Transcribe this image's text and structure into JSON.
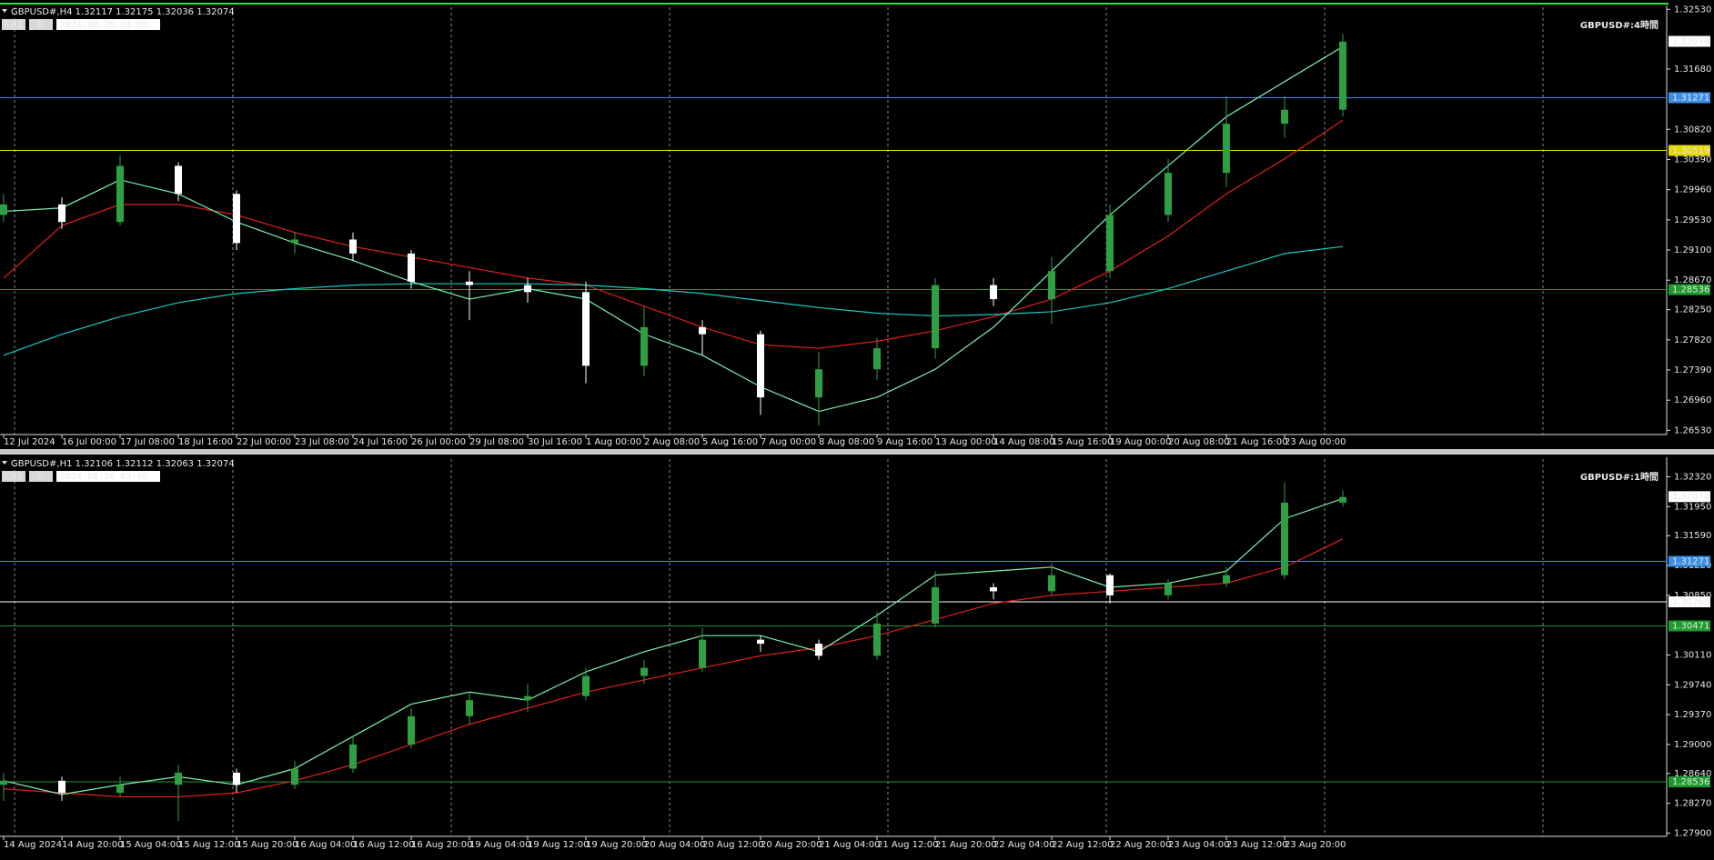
{
  "chart_data": [
    {
      "type": "candlestick",
      "header": "GBPUSD#,H4  1.32117 1.32175 1.32036 1.32074",
      "buttons": [
        "CR1",
        "R"
      ],
      "date": "2024.08.26 04:00",
      "title": "GBPUSD#:4時間",
      "categories": [
        "12 Jul 2024",
        "16 Jul 00:00",
        "17 Jul 08:00",
        "18 Jul 16:00",
        "22 Jul 00:00",
        "23 Jul 08:00",
        "24 Jul 16:00",
        "26 Jul 00:00",
        "29 Jul 08:00",
        "30 Jul 16:00",
        "1 Aug 00:00",
        "2 Aug 08:00",
        "5 Aug 16:00",
        "7 Aug 00:00",
        "8 Aug 08:00",
        "9 Aug 16:00",
        "13 Aug 00:00",
        "14 Aug 08:00",
        "15 Aug 16:00",
        "19 Aug 00:00",
        "20 Aug 08:00",
        "21 Aug 16:00",
        "23 Aug 00:00",
        null
      ],
      "open": [
        1.296,
        1.2975,
        1.295,
        1.303,
        1.299,
        1.292,
        1.2925,
        1.2905,
        1.2865,
        1.286,
        1.285,
        1.2745,
        1.28,
        1.279,
        1.27,
        1.274,
        1.277,
        1.286,
        1.284,
        1.288,
        1.296,
        1.302,
        1.309,
        1.311
      ],
      "high": [
        1.299,
        1.2985,
        1.3045,
        1.3035,
        1.2995,
        1.2935,
        1.2935,
        1.291,
        1.288,
        1.287,
        1.2865,
        1.283,
        1.281,
        1.2795,
        1.2765,
        1.2785,
        1.287,
        1.287,
        1.29,
        1.2975,
        1.304,
        1.313,
        1.313,
        1.3218
      ],
      "low": [
        1.295,
        1.294,
        1.2945,
        1.298,
        1.291,
        1.2905,
        1.2895,
        1.2855,
        1.281,
        1.2835,
        1.272,
        1.273,
        1.276,
        1.2675,
        1.266,
        1.2725,
        1.2755,
        1.283,
        1.2805,
        1.287,
        1.295,
        1.3,
        1.307,
        1.31
      ],
      "close": [
        1.2975,
        1.295,
        1.303,
        1.299,
        1.292,
        1.2925,
        1.2905,
        1.2865,
        1.286,
        1.285,
        1.2745,
        1.28,
        1.279,
        1.27,
        1.274,
        1.277,
        1.286,
        1.284,
        1.288,
        1.296,
        1.302,
        1.309,
        1.311,
        1.3207
      ],
      "up_color": "#2ea043",
      "down_color": "#ffffff",
      "series": [
        {
          "color": "#e0201b",
          "values": [
            1.287,
            1.2945,
            1.2975,
            1.2975,
            1.296,
            1.2935,
            1.2915,
            1.29,
            1.2885,
            1.287,
            1.286,
            1.283,
            1.28,
            1.2775,
            1.277,
            1.278,
            1.2795,
            1.2815,
            1.284,
            1.288,
            1.293,
            1.299,
            1.304,
            1.3095
          ]
        },
        {
          "color": "#1fc6c6",
          "values": [
            1.276,
            1.279,
            1.2815,
            1.2835,
            1.2848,
            1.2855,
            1.286,
            1.2862,
            1.2862,
            1.2862,
            1.286,
            1.2855,
            1.2848,
            1.2838,
            1.2828,
            1.282,
            1.2816,
            1.2818,
            1.2822,
            1.2835,
            1.2855,
            1.288,
            1.2905,
            1.2915
          ]
        },
        {
          "color": "#7cf0b0",
          "values": [
            1.2965,
            1.297,
            1.301,
            1.299,
            1.295,
            1.292,
            1.2895,
            1.2865,
            1.284,
            1.2855,
            1.284,
            1.279,
            1.276,
            1.2715,
            1.268,
            1.27,
            1.274,
            1.28,
            1.288,
            1.296,
            1.303,
            1.31,
            1.315,
            1.32
          ]
        }
      ],
      "hlines": [
        {
          "value": 1.31271,
          "label": "1.31271",
          "color": "#3a8ee6"
        },
        {
          "value": 1.30519,
          "label": "1.30519",
          "color": "#e5d800"
        },
        {
          "value": 1.28536,
          "label": "1.28536",
          "color": "#1e9a2e"
        }
      ],
      "last_price": {
        "value": 1.32074,
        "label": "1.32074"
      },
      "ylim": [
        1.2647,
        1.3256
      ],
      "yticks": [
        {
          "value": 1.3253,
          "label": "1.32530"
        },
        {
          "value": 1.3168,
          "label": "1.31680"
        },
        {
          "value": 1.3082,
          "label": "1.30820"
        },
        {
          "value": 1.3039,
          "label": "1.30390"
        },
        {
          "value": 1.2996,
          "label": "1.29960"
        },
        {
          "value": 1.2953,
          "label": "1.29530"
        },
        {
          "value": 1.291,
          "label": "1.29100"
        },
        {
          "value": 1.2867,
          "label": "1.28670"
        },
        {
          "value": 1.2825,
          "label": "1.28250"
        },
        {
          "value": 1.2782,
          "label": "1.27820"
        },
        {
          "value": 1.2739,
          "label": "1.27390"
        },
        {
          "value": 1.2696,
          "label": "1.26960"
        },
        {
          "value": 1.2653,
          "label": "1.26530"
        }
      ]
    },
    {
      "type": "candlestick",
      "header": "GBPUSD#,H1  1.32106 1.32112 1.32063 1.32074",
      "buttons": [
        "CR1",
        "R"
      ],
      "date": "2024.08.26 03:00",
      "title": "GBPUSD#:1時間",
      "categories": [
        "14 Aug 2024",
        "14 Aug 20:00",
        "15 Aug 04:00",
        "15 Aug 12:00",
        "15 Aug 20:00",
        "16 Aug 04:00",
        "16 Aug 12:00",
        "16 Aug 20:00",
        "19 Aug 04:00",
        "19 Aug 12:00",
        "19 Aug 20:00",
        "20 Aug 04:00",
        "20 Aug 12:00",
        "20 Aug 20:00",
        "21 Aug 04:00",
        "21 Aug 12:00",
        "21 Aug 20:00",
        "22 Aug 04:00",
        "22 Aug 12:00",
        "22 Aug 20:00",
        "23 Aug 04:00",
        "23 Aug 12:00",
        "23 Aug 20:00",
        null
      ],
      "open": [
        1.285,
        1.2855,
        1.284,
        1.285,
        1.2865,
        1.285,
        1.287,
        1.29,
        1.2935,
        1.2955,
        1.296,
        1.2985,
        1.2995,
        1.303,
        1.3025,
        1.301,
        1.305,
        1.3095,
        1.309,
        1.311,
        1.3085,
        1.31,
        1.311,
        1.32
      ],
      "high": [
        1.2865,
        1.286,
        1.286,
        1.2875,
        1.287,
        1.288,
        1.291,
        1.2945,
        1.2965,
        1.2975,
        1.2995,
        1.3005,
        1.3045,
        1.3035,
        1.303,
        1.3065,
        1.3115,
        1.31,
        1.3125,
        1.3112,
        1.3105,
        1.312,
        1.3225,
        1.3215
      ],
      "low": [
        1.283,
        1.283,
        1.2835,
        1.2805,
        1.284,
        1.2845,
        1.2865,
        1.2895,
        1.2925,
        1.294,
        1.2955,
        1.2975,
        1.299,
        1.3015,
        1.3005,
        1.3005,
        1.3045,
        1.308,
        1.3085,
        1.3075,
        1.308,
        1.3095,
        1.3105,
        1.3195
      ],
      "close": [
        1.2855,
        1.284,
        1.285,
        1.2865,
        1.285,
        1.287,
        1.29,
        1.2935,
        1.2955,
        1.296,
        1.2985,
        1.2995,
        1.303,
        1.3025,
        1.301,
        1.305,
        1.3095,
        1.309,
        1.311,
        1.3085,
        1.31,
        1.311,
        1.32,
        1.3207
      ],
      "up_color": "#2ea043",
      "down_color": "#ffffff",
      "series": [
        {
          "color": "#e0201b",
          "values": [
            1.2845,
            1.284,
            1.2835,
            1.2835,
            1.284,
            1.2855,
            1.2875,
            1.29,
            1.2925,
            1.2945,
            1.2965,
            1.298,
            1.2995,
            1.301,
            1.302,
            1.3035,
            1.3055,
            1.3075,
            1.3085,
            1.309,
            1.3095,
            1.31,
            1.312,
            1.3155
          ]
        },
        {
          "color": "#7cf0b0",
          "values": [
            1.2855,
            1.2838,
            1.285,
            1.286,
            1.285,
            1.287,
            1.291,
            1.295,
            1.2965,
            1.2955,
            1.299,
            1.3015,
            1.3035,
            1.3035,
            1.3015,
            1.306,
            1.311,
            1.3115,
            1.312,
            1.3095,
            1.31,
            1.3115,
            1.318,
            1.3205
          ]
        }
      ],
      "hlines": [
        {
          "value": 1.31271,
          "label": "1.31271",
          "color": "#3a8ee6"
        },
        {
          "value": 1.30769,
          "label": "1.30769",
          "color": "#ffffff"
        },
        {
          "value": 1.30471,
          "label": "1.30471",
          "color": "#1e9a2e"
        },
        {
          "value": 1.28536,
          "label": "1.28536",
          "color": "#1e9a2e"
        }
      ],
      "last_price": {
        "value": 1.32074,
        "label": "1.32074"
      },
      "ylim": [
        1.2786,
        1.3254
      ],
      "yticks": [
        {
          "value": 1.3232,
          "label": "1.32320"
        },
        {
          "value": 1.3195,
          "label": "1.31950"
        },
        {
          "value": 1.3159,
          "label": "1.31590"
        },
        {
          "value": 1.3122,
          "label": "1.31220"
        },
        {
          "value": 1.3085,
          "label": "1.30850"
        },
        {
          "value": 1.3011,
          "label": "1.30110"
        },
        {
          "value": 1.2974,
          "label": "1.29740"
        },
        {
          "value": 1.2937,
          "label": "1.29370"
        },
        {
          "value": 1.29,
          "label": "1.29000"
        },
        {
          "value": 1.2864,
          "label": "1.28640"
        },
        {
          "value": 1.2827,
          "label": "1.28270"
        },
        {
          "value": 1.279,
          "label": "1.27900"
        }
      ]
    }
  ]
}
